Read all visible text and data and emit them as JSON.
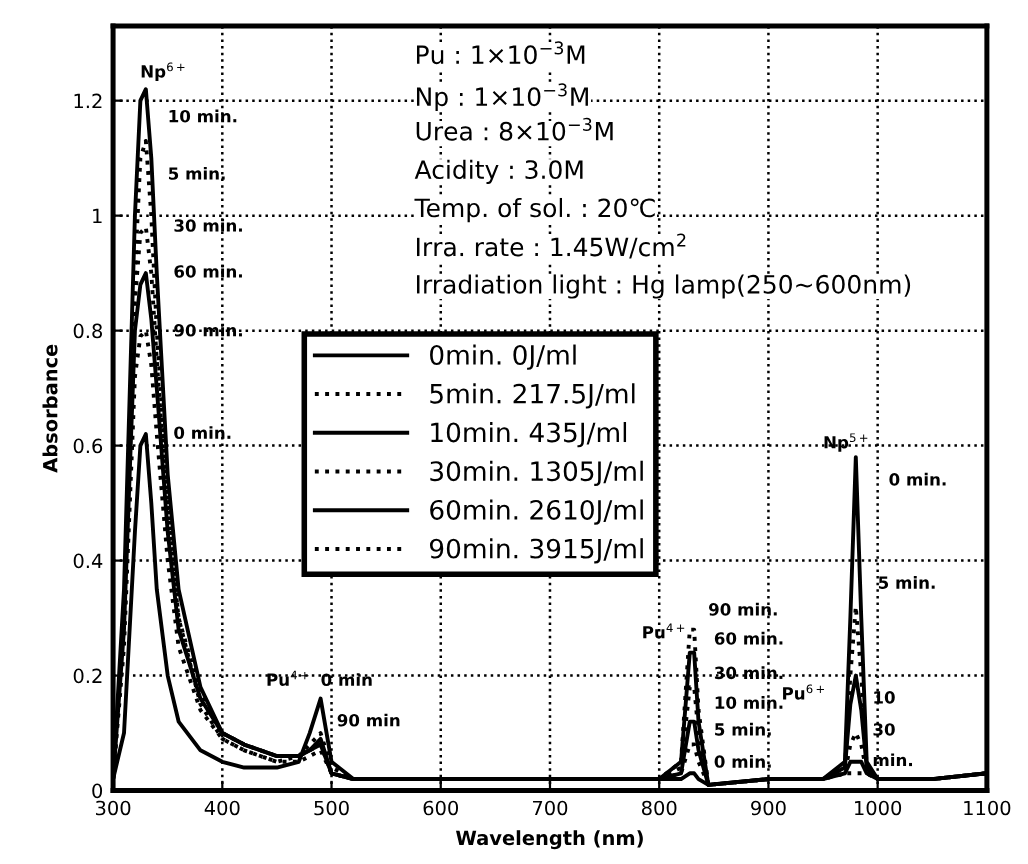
{
  "chart_data": {
    "type": "line",
    "xlabel": "Wavelength (nm)",
    "ylabel": "Absorbance",
    "x": [
      300,
      310,
      320,
      325,
      330,
      335,
      340,
      350,
      360,
      380,
      400,
      420,
      450,
      470,
      480,
      490,
      500,
      520,
      550,
      600,
      650,
      700,
      750,
      800,
      820,
      828,
      832,
      836,
      845,
      900,
      950,
      970,
      975,
      980,
      985,
      990,
      1000,
      1050,
      1100
    ],
    "series": [
      {
        "name": "0min. 0J/ml",
        "color": "#000000",
        "line_style": "solid",
        "values": [
          0.02,
          0.1,
          0.45,
          0.6,
          0.62,
          0.5,
          0.35,
          0.2,
          0.12,
          0.07,
          0.05,
          0.04,
          0.04,
          0.05,
          0.1,
          0.16,
          0.05,
          0.02,
          0.02,
          0.02,
          0.02,
          0.02,
          0.02,
          0.02,
          0.02,
          0.03,
          0.03,
          0.02,
          0.01,
          0.02,
          0.02,
          0.05,
          0.3,
          0.58,
          0.3,
          0.05,
          0.02,
          0.02,
          0.03
        ]
      },
      {
        "name": "5min. 217.5J/ml",
        "color": "#000000",
        "line_style": "dotted",
        "values": [
          0.02,
          0.3,
          0.9,
          1.1,
          1.13,
          1.0,
          0.8,
          0.5,
          0.3,
          0.15,
          0.09,
          0.07,
          0.05,
          0.06,
          0.08,
          0.1,
          0.04,
          0.02,
          0.02,
          0.02,
          0.02,
          0.02,
          0.02,
          0.02,
          0.03,
          0.08,
          0.08,
          0.05,
          0.01,
          0.02,
          0.02,
          0.04,
          0.2,
          0.32,
          0.2,
          0.04,
          0.02,
          0.02,
          0.03
        ]
      },
      {
        "name": "10min. 435J/ml",
        "color": "#000000",
        "line_style": "solid",
        "values": [
          0.02,
          0.35,
          1.0,
          1.2,
          1.22,
          1.1,
          0.9,
          0.55,
          0.35,
          0.18,
          0.1,
          0.08,
          0.06,
          0.06,
          0.07,
          0.09,
          0.03,
          0.02,
          0.02,
          0.02,
          0.02,
          0.02,
          0.02,
          0.02,
          0.03,
          0.12,
          0.12,
          0.07,
          0.01,
          0.02,
          0.02,
          0.04,
          0.15,
          0.2,
          0.14,
          0.04,
          0.02,
          0.02,
          0.03
        ]
      },
      {
        "name": "30min. 1305J/ml",
        "color": "#000000",
        "line_style": "dotted",
        "values": [
          0.02,
          0.3,
          0.85,
          0.97,
          0.98,
          0.9,
          0.75,
          0.48,
          0.3,
          0.17,
          0.1,
          0.08,
          0.06,
          0.06,
          0.07,
          0.08,
          0.03,
          0.02,
          0.02,
          0.02,
          0.02,
          0.02,
          0.02,
          0.02,
          0.04,
          0.18,
          0.18,
          0.1,
          0.01,
          0.02,
          0.02,
          0.03,
          0.08,
          0.1,
          0.08,
          0.03,
          0.02,
          0.02,
          0.03
        ]
      },
      {
        "name": "60min. 2610J/ml",
        "color": "#000000",
        "line_style": "solid",
        "values": [
          0.02,
          0.28,
          0.8,
          0.88,
          0.9,
          0.82,
          0.7,
          0.45,
          0.28,
          0.16,
          0.1,
          0.08,
          0.06,
          0.06,
          0.07,
          0.08,
          0.03,
          0.02,
          0.02,
          0.02,
          0.02,
          0.02,
          0.02,
          0.02,
          0.05,
          0.24,
          0.24,
          0.12,
          0.01,
          0.02,
          0.02,
          0.03,
          0.05,
          0.05,
          0.05,
          0.03,
          0.02,
          0.02,
          0.03
        ]
      },
      {
        "name": "90min. 3915J/ml",
        "color": "#000000",
        "line_style": "dotted",
        "values": [
          0.02,
          0.25,
          0.72,
          0.79,
          0.8,
          0.74,
          0.62,
          0.4,
          0.25,
          0.14,
          0.09,
          0.07,
          0.05,
          0.05,
          0.06,
          0.07,
          0.03,
          0.02,
          0.02,
          0.02,
          0.02,
          0.02,
          0.02,
          0.02,
          0.05,
          0.28,
          0.28,
          0.14,
          0.01,
          0.02,
          0.02,
          0.03,
          0.03,
          0.03,
          0.03,
          0.03,
          0.02,
          0.02,
          0.03
        ]
      }
    ],
    "xlim": [
      300,
      1100
    ],
    "xticks": [
      300,
      400,
      500,
      600,
      700,
      800,
      900,
      1000,
      1100
    ],
    "ylim": [
      0,
      1.33
    ],
    "yticks": [
      0,
      0.2,
      0.4,
      0.6,
      0.8,
      1,
      1.2
    ],
    "grid": true,
    "legend": "center",
    "marker": "none",
    "annotations": [
      "Pu : 1×10$^{−3}$M",
      "Np : 1×10$^{−3}$M",
      "Urea : 8×10$^{−3}$M",
      "Acidity : 3.0M",
      "Temp. of sol. : 20℃",
      "Irra. rate : 1.45W/cm$^{2}$",
      "Irradiation light : Hg lamp(250∼600nm)",
      "Np$^{6+}$",
      "10 min.",
      "5 min.",
      "30 min.",
      "60 min.",
      "90 min.",
      "0 min.",
      "Pu$^{4+}$",
      "0 min",
      "90 min",
      "Pu$^{4+}$",
      "90 min.",
      "60 min.",
      "30 min.",
      "10 min.",
      "5 min.",
      "0 min.",
      "Np$^{5+}$",
      "0 min.",
      "5 min.",
      "Pu$^{6+}$",
      "10",
      "30",
      "min."
    ]
  }
}
